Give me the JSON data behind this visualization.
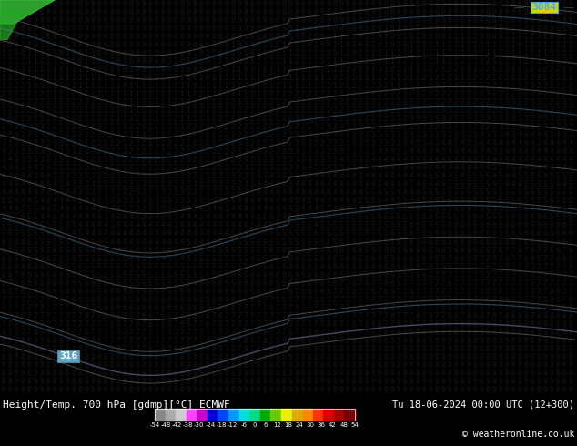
{
  "title_left": "Height/Temp. 700 hPa [gdmp][°C] ECMWF",
  "title_right": "Tu 18-06-2024 00:00 UTC (12+300)",
  "copyright": "© weatheronline.co.uk",
  "colorbar_values": [
    -54,
    -48,
    -42,
    -38,
    -30,
    -24,
    -18,
    -12,
    -6,
    0,
    6,
    12,
    18,
    24,
    30,
    36,
    42,
    48,
    54
  ],
  "colorbar_colors": [
    "#888888",
    "#aaaaaa",
    "#cccccc",
    "#ff44ff",
    "#cc00cc",
    "#0000dd",
    "#0044ff",
    "#0099ff",
    "#00dddd",
    "#00dd88",
    "#00aa00",
    "#66cc00",
    "#eeee00",
    "#ddaa00",
    "#ff8800",
    "#ff3300",
    "#dd0000",
    "#aa0000",
    "#770000"
  ],
  "bg_color": "#f0e800",
  "digit_color": "#111111",
  "contour_color_main": "#888888",
  "contour_color_blue": "#4488cc",
  "highlight_3084_color": "#44aaff",
  "highlight_316_color": "#88ccff",
  "fig_width": 6.34,
  "fig_height": 4.9,
  "dpi": 100
}
